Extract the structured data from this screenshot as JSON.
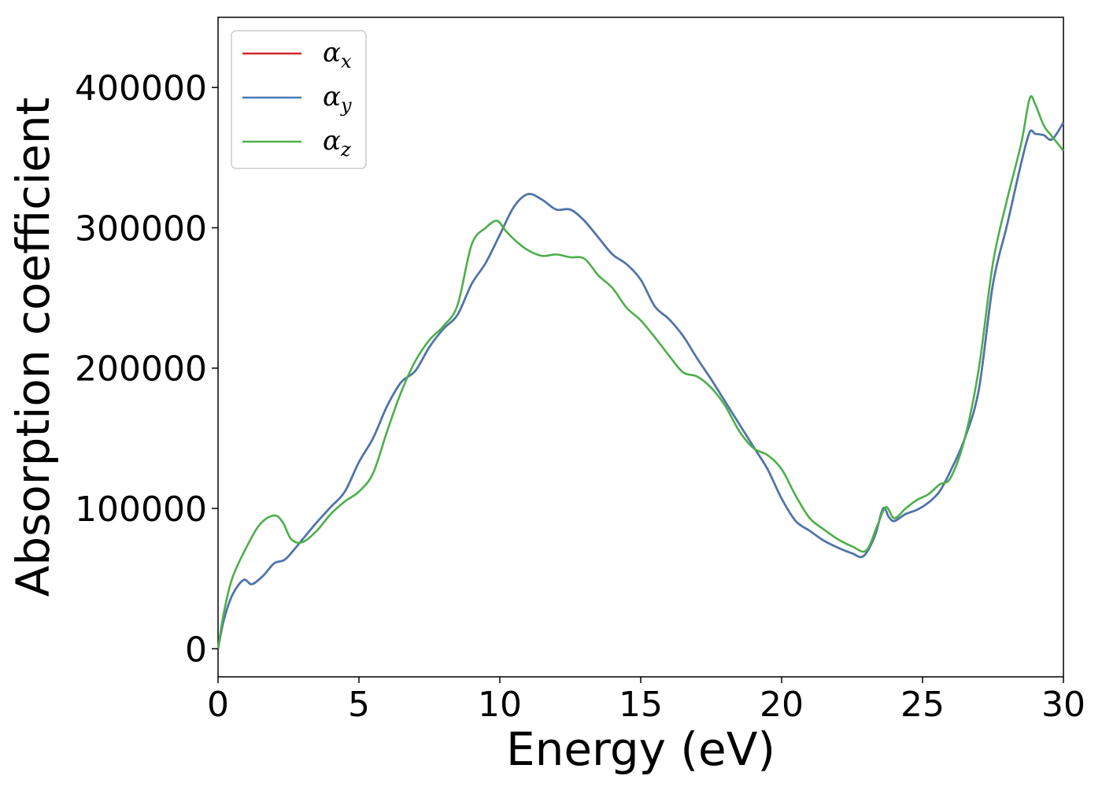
{
  "chart_data": {
    "type": "line",
    "xlabel": "Energy (eV)",
    "ylabel": "Absorption coefficient",
    "xlim": [
      0,
      30
    ],
    "ylim": [
      -20000,
      450000
    ],
    "xticks": [
      0,
      5,
      10,
      15,
      20,
      25,
      30
    ],
    "yticks": [
      0,
      100000,
      200000,
      300000,
      400000
    ],
    "grid": false,
    "legend": "top-left",
    "series": [
      {
        "name": "x",
        "color": "#d62728",
        "x": [
          0,
          0.2,
          0.5,
          0.9,
          1.2,
          1.6,
          2.0,
          2.4,
          3.0,
          3.5,
          4.0,
          4.5,
          5.0,
          5.5,
          6.0,
          6.5,
          7.0,
          7.5,
          8.0,
          8.5,
          9.0,
          9.5,
          10.0,
          10.5,
          11.0,
          11.5,
          12.0,
          12.5,
          13.0,
          13.5,
          14.0,
          14.5,
          15.0,
          15.5,
          16.0,
          16.5,
          17.0,
          17.5,
          18.0,
          18.5,
          19.0,
          19.5,
          20.0,
          20.5,
          21.0,
          21.5,
          22.0,
          22.5,
          22.9,
          23.3,
          23.6,
          23.8,
          24.0,
          24.4,
          24.8,
          25.2,
          25.6,
          26.0,
          26.5,
          27.0,
          27.5,
          28.0,
          28.5,
          28.8,
          29.0,
          29.3,
          29.6,
          30.0
        ],
        "y": [
          0,
          20000,
          38000,
          49000,
          46000,
          52000,
          61000,
          64000,
          78000,
          90000,
          101000,
          112000,
          133000,
          150000,
          173000,
          190000,
          198000,
          215000,
          228000,
          238000,
          260000,
          275000,
          295000,
          315000,
          324000,
          320000,
          313000,
          313000,
          305000,
          293000,
          281000,
          274000,
          263000,
          244000,
          235000,
          223000,
          207000,
          192000,
          176000,
          160000,
          144000,
          128000,
          107000,
          91000,
          84000,
          77000,
          72000,
          68000,
          66000,
          80000,
          100000,
          94000,
          91000,
          96000,
          99000,
          104000,
          112000,
          127000,
          150000,
          185000,
          260000,
          302000,
          346000,
          368000,
          367000,
          366000,
          363000,
          375000
        ]
      },
      {
        "name": "y",
        "color": "#4878b0",
        "x": [
          0,
          0.2,
          0.5,
          0.9,
          1.2,
          1.6,
          2.0,
          2.4,
          3.0,
          3.5,
          4.0,
          4.5,
          5.0,
          5.5,
          6.0,
          6.5,
          7.0,
          7.5,
          8.0,
          8.5,
          9.0,
          9.5,
          10.0,
          10.5,
          11.0,
          11.5,
          12.0,
          12.5,
          13.0,
          13.5,
          14.0,
          14.5,
          15.0,
          15.5,
          16.0,
          16.5,
          17.0,
          17.5,
          18.0,
          18.5,
          19.0,
          19.5,
          20.0,
          20.5,
          21.0,
          21.5,
          22.0,
          22.5,
          22.9,
          23.3,
          23.6,
          23.8,
          24.0,
          24.4,
          24.8,
          25.2,
          25.6,
          26.0,
          26.5,
          27.0,
          27.5,
          28.0,
          28.5,
          28.8,
          29.0,
          29.3,
          29.6,
          30.0
        ],
        "y": [
          0,
          20000,
          38000,
          49000,
          46000,
          52000,
          61000,
          64000,
          78000,
          90000,
          101000,
          112000,
          133000,
          150000,
          173000,
          190000,
          198000,
          215000,
          228000,
          238000,
          260000,
          275000,
          295000,
          315000,
          324000,
          320000,
          313000,
          313000,
          305000,
          293000,
          281000,
          274000,
          263000,
          244000,
          235000,
          223000,
          207000,
          192000,
          176000,
          160000,
          144000,
          128000,
          107000,
          91000,
          84000,
          77000,
          72000,
          68000,
          66000,
          80000,
          100000,
          94000,
          91000,
          96000,
          99000,
          104000,
          112000,
          127000,
          150000,
          185000,
          260000,
          302000,
          346000,
          368000,
          367000,
          366000,
          363000,
          375000
        ]
      },
      {
        "name": "z",
        "color": "#4daf4a",
        "x": [
          0,
          0.2,
          0.5,
          1.0,
          1.5,
          2.0,
          2.3,
          2.6,
          3.0,
          3.5,
          4.0,
          4.5,
          5.0,
          5.5,
          6.0,
          6.5,
          7.0,
          7.5,
          8.0,
          8.5,
          9.0,
          9.5,
          9.9,
          10.2,
          10.6,
          11.0,
          11.5,
          12.0,
          12.5,
          13.0,
          13.5,
          14.0,
          14.5,
          15.0,
          15.5,
          16.0,
          16.5,
          17.0,
          17.5,
          18.0,
          18.5,
          19.0,
          19.5,
          20.0,
          20.5,
          21.0,
          21.5,
          22.0,
          22.5,
          23.0,
          23.4,
          23.7,
          24.0,
          24.4,
          24.8,
          25.2,
          25.6,
          26.0,
          26.5,
          27.0,
          27.5,
          28.0,
          28.5,
          28.8,
          29.0,
          29.3,
          29.6,
          30.0
        ],
        "y": [
          0,
          25000,
          50000,
          72000,
          89000,
          95000,
          90000,
          78000,
          76000,
          84000,
          96000,
          105000,
          112000,
          125000,
          155000,
          183000,
          205000,
          220000,
          230000,
          245000,
          288000,
          300000,
          305000,
          298000,
          290000,
          284000,
          280000,
          281000,
          279000,
          278000,
          266000,
          257000,
          243000,
          234000,
          222000,
          209000,
          197000,
          194000,
          186000,
          173000,
          155000,
          143000,
          138000,
          128000,
          109000,
          93000,
          85000,
          78000,
          73000,
          70000,
          88000,
          101000,
          93000,
          100000,
          106000,
          110000,
          117000,
          122000,
          150000,
          200000,
          275000,
          320000,
          360000,
          392000,
          388000,
          373000,
          365000,
          355000
        ]
      }
    ]
  }
}
